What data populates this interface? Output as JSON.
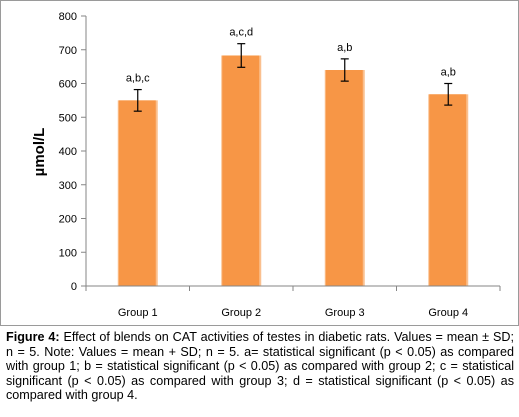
{
  "chart_data": {
    "type": "bar",
    "categories": [
      "Group 1",
      "Group 2",
      "Group 3",
      "Group 4"
    ],
    "values": [
      550,
      683,
      640,
      568
    ],
    "error": [
      32,
      35,
      33,
      32
    ],
    "annotations": [
      "a,b,c",
      "a,c,d",
      "a,b",
      "a,b"
    ],
    "ylabel": "µmol/L",
    "ylim": [
      0,
      800
    ],
    "yticks": [
      0,
      100,
      200,
      300,
      400,
      500,
      600,
      700,
      800
    ],
    "grid": false,
    "legend": "none",
    "bar_color": "#f79646",
    "bar_highlight": "#fac08f",
    "error_color": "#000000",
    "axis_color": "#868686"
  },
  "caption": {
    "label": "Figure 4:",
    "text": " Effect of blends on CAT activities of testes in diabetic rats. Values = mean ± SD; n = 5. Note: Values = mean + SD; n = 5. a= statistical significant (p < 0.05) as compared with group 1; b = statistical significant (p < 0.05) as compared with group 2; c = statistical significant (p < 0.05) as compared with group 3; d = statistical significant (p < 0.05) as compared with group 4."
  }
}
